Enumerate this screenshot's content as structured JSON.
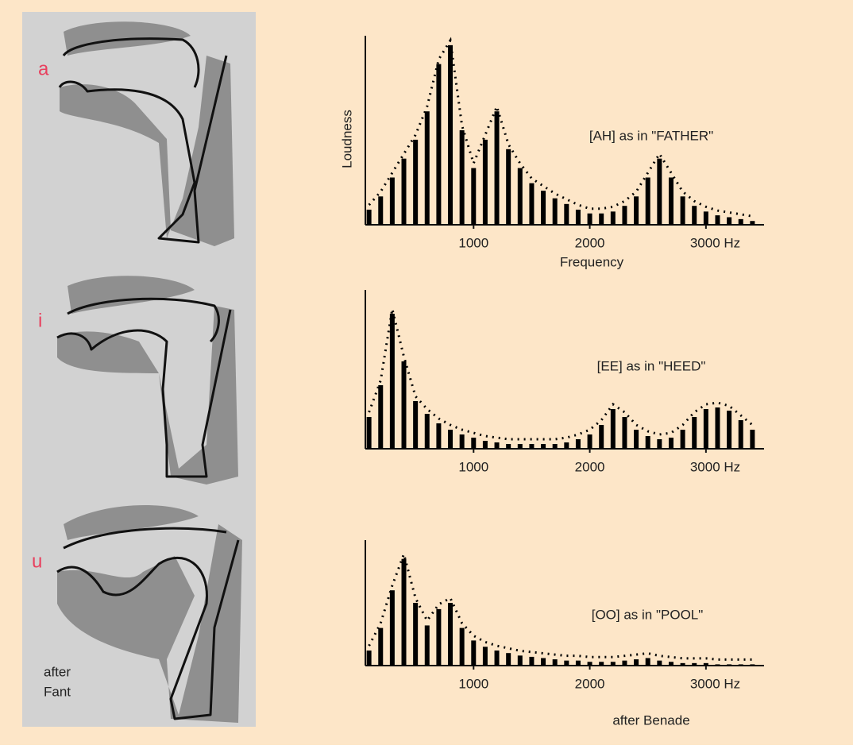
{
  "chart_data": [
    {
      "type": "bar",
      "annotation": "[AH] as in \"FATHER\"",
      "x_label": "Frequency",
      "y_label": "Loudness",
      "color": "#000000",
      "x": [
        100,
        200,
        300,
        400,
        500,
        600,
        700,
        800,
        900,
        1000,
        1100,
        1200,
        1300,
        1400,
        1500,
        1600,
        1700,
        1800,
        1900,
        2000,
        2100,
        2200,
        2300,
        2400,
        2500,
        2600,
        2700,
        2800,
        2900,
        3000,
        3100,
        3200,
        3300,
        3400
      ],
      "values": [
        0.8,
        1.5,
        2.5,
        3.5,
        4.5,
        6,
        8.5,
        9.5,
        5,
        3,
        4.5,
        6,
        4,
        3,
        2.2,
        1.8,
        1.4,
        1.1,
        0.8,
        0.6,
        0.6,
        0.7,
        1,
        1.5,
        2.5,
        3.5,
        2.5,
        1.5,
        1,
        0.7,
        0.5,
        0.4,
        0.3,
        0.2
      ],
      "xlim": [
        0,
        3500
      ],
      "ylim": [
        0,
        10
      ],
      "xticks": [
        1000,
        2000,
        {
          "value": 3000,
          "label": "3000 Hz"
        }
      ]
    },
    {
      "type": "bar",
      "annotation": "[EE] as in \"HEED\"",
      "color": "#000000",
      "x": [
        100,
        200,
        300,
        400,
        500,
        600,
        700,
        800,
        900,
        1000,
        1100,
        1200,
        1300,
        1400,
        1500,
        1600,
        1700,
        1800,
        1900,
        2000,
        2100,
        2200,
        2300,
        2400,
        2500,
        2600,
        2700,
        2800,
        2900,
        3000,
        3100,
        3200,
        3300,
        3400
      ],
      "values": [
        2,
        4,
        8.5,
        5.5,
        3,
        2.2,
        1.6,
        1.2,
        0.9,
        0.7,
        0.5,
        0.4,
        0.3,
        0.3,
        0.3,
        0.3,
        0.3,
        0.4,
        0.6,
        0.9,
        1.5,
        2.5,
        2,
        1.2,
        0.8,
        0.6,
        0.7,
        1.2,
        2,
        2.5,
        2.6,
        2.4,
        1.8,
        1.2
      ],
      "xlim": [
        0,
        3500
      ],
      "ylim": [
        0,
        10
      ],
      "xticks": [
        1000,
        2000,
        {
          "value": 3000,
          "label": "3000 Hz"
        }
      ]
    },
    {
      "type": "bar",
      "annotation": "[OO] as in \"POOL\"",
      "color": "#000000",
      "x": [
        100,
        200,
        300,
        400,
        500,
        600,
        700,
        800,
        900,
        1000,
        1100,
        1200,
        1300,
        1400,
        1500,
        1600,
        1700,
        1800,
        1900,
        2000,
        2100,
        2200,
        2300,
        2400,
        2500,
        2600,
        2700,
        2800,
        2900,
        3000,
        3100,
        3200,
        3300,
        3400
      ],
      "values": [
        1.2,
        3,
        6,
        8.5,
        5,
        3.2,
        4.5,
        5,
        3,
        2,
        1.5,
        1.2,
        1,
        0.8,
        0.7,
        0.6,
        0.5,
        0.4,
        0.4,
        0.3,
        0.3,
        0.3,
        0.4,
        0.5,
        0.6,
        0.4,
        0.3,
        0.2,
        0.2,
        0.2,
        0.1,
        0.1,
        0.1,
        0.1
      ],
      "xlim": [
        0,
        3500
      ],
      "ylim": [
        0,
        10
      ],
      "xticks": [
        1000,
        2000,
        {
          "value": 3000,
          "label": "3000 Hz"
        }
      ]
    }
  ],
  "figure": {
    "vowels": [
      "a",
      "i",
      "u"
    ],
    "credit_left": [
      "after",
      "Fant"
    ],
    "credit_right": "after Benade"
  }
}
